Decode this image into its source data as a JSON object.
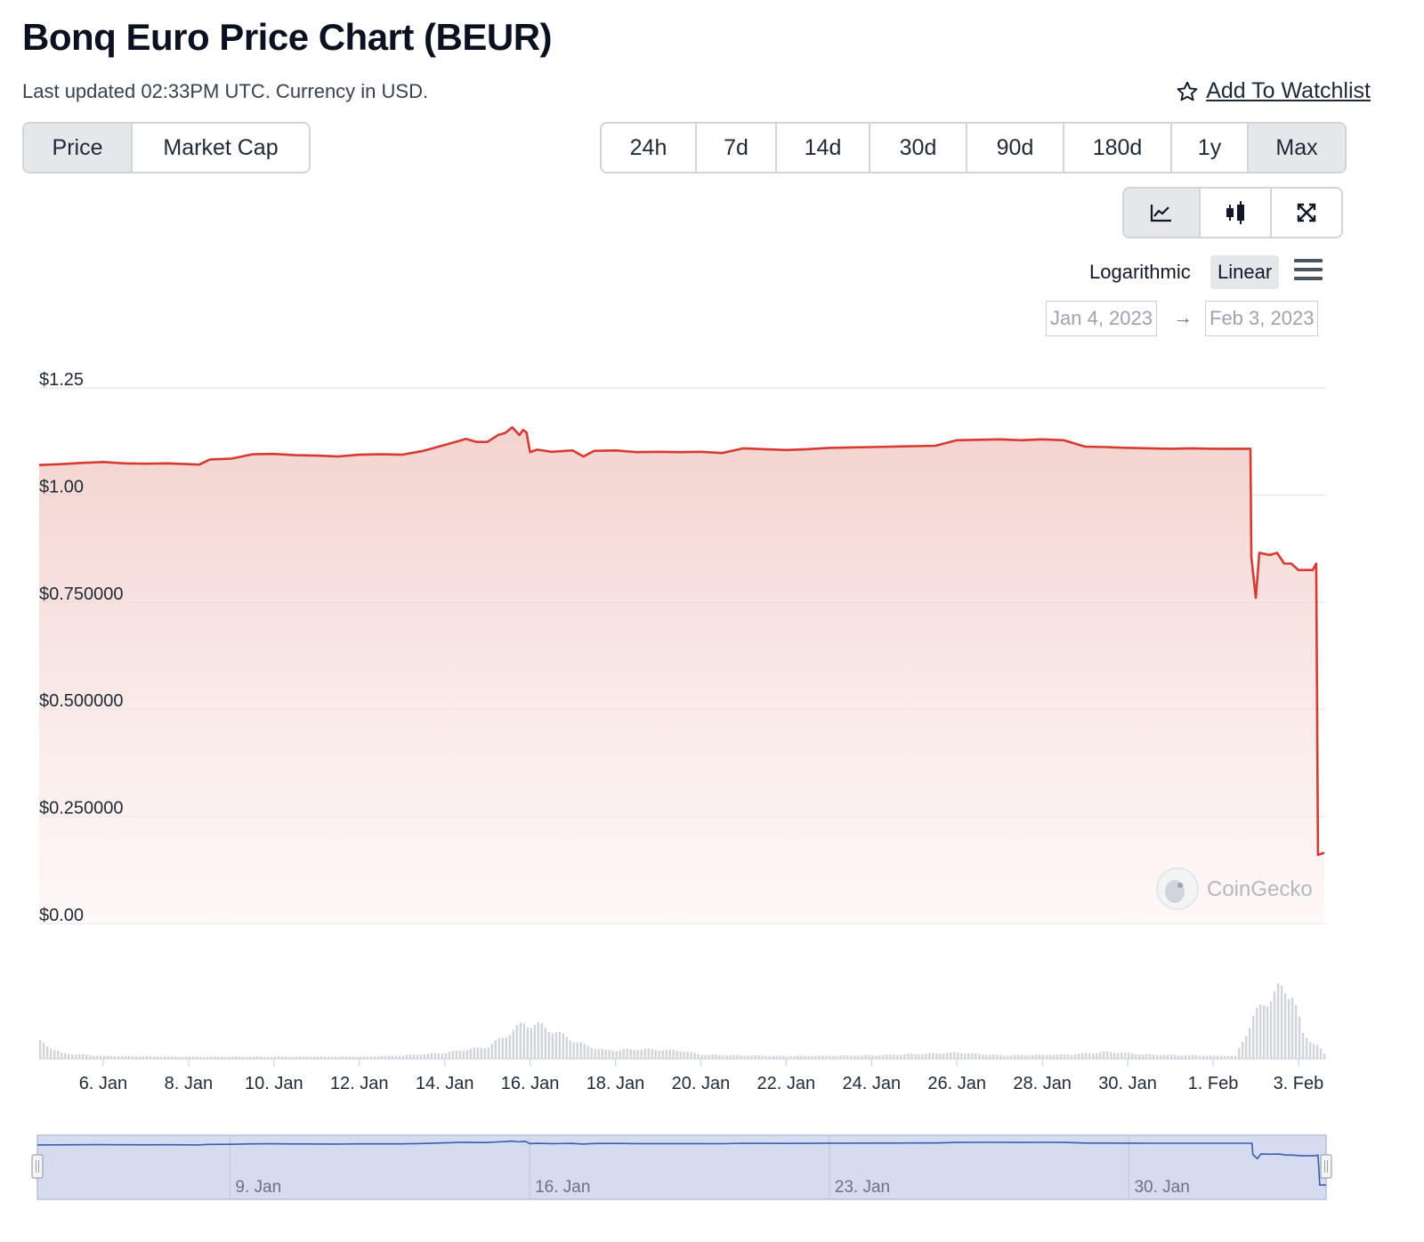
{
  "header": {
    "title": "Bonq Euro Price Chart (BEUR)",
    "subtitle": "Last updated 02:33PM UTC. Currency in USD.",
    "watchlist_label": "Add To Watchlist"
  },
  "tabs": [
    "Price",
    "Market Cap"
  ],
  "active_tab": "Price",
  "ranges": [
    "24h",
    "7d",
    "14d",
    "30d",
    "90d",
    "180d",
    "1y",
    "Max"
  ],
  "active_range": "Max",
  "chart_tools": [
    "line-chart-icon",
    "candlestick-icon",
    "expand-icon"
  ],
  "scale": {
    "log_label": "Logarithmic",
    "linear_label": "Linear",
    "active": "Linear"
  },
  "date_range": {
    "from": "Jan 4, 2023",
    "arrow": "→",
    "to": "Feb 3, 2023"
  },
  "watermark": "CoinGecko",
  "colors": {
    "line": "#d73a30",
    "fill": "#f5d5d1",
    "volume": "#d1d5db",
    "navigator": "#3b5bb5"
  },
  "chart_data": {
    "type": "area",
    "title": "",
    "xlabel": "",
    "ylabel": "",
    "x_range": [
      "2023-01-04T12:00",
      "2023-02-03T14:33"
    ],
    "ylim": [
      0,
      1.25
    ],
    "y_ticks": [
      {
        "value": 0,
        "label": "$0.00"
      },
      {
        "value": 0.25,
        "label": "$0.250000"
      },
      {
        "value": 0.5,
        "label": "$0.500000"
      },
      {
        "value": 0.75,
        "label": "$0.750000"
      },
      {
        "value": 1.0,
        "label": "$1.00"
      },
      {
        "value": 1.25,
        "label": "$1.25"
      }
    ],
    "x_ticks": [
      {
        "date": "2023-01-06",
        "label": "6. Jan"
      },
      {
        "date": "2023-01-08",
        "label": "8. Jan"
      },
      {
        "date": "2023-01-10",
        "label": "10. Jan"
      },
      {
        "date": "2023-01-12",
        "label": "12. Jan"
      },
      {
        "date": "2023-01-14",
        "label": "14. Jan"
      },
      {
        "date": "2023-01-16",
        "label": "16. Jan"
      },
      {
        "date": "2023-01-18",
        "label": "18. Jan"
      },
      {
        "date": "2023-01-20",
        "label": "20. Jan"
      },
      {
        "date": "2023-01-22",
        "label": "22. Jan"
      },
      {
        "date": "2023-01-24",
        "label": "24. Jan"
      },
      {
        "date": "2023-01-26",
        "label": "26. Jan"
      },
      {
        "date": "2023-01-28",
        "label": "28. Jan"
      },
      {
        "date": "2023-01-30",
        "label": "30. Jan"
      },
      {
        "date": "2023-02-01",
        "label": "1. Feb"
      },
      {
        "date": "2023-02-03",
        "label": "3. Feb"
      }
    ],
    "navigator_ticks": [
      {
        "date": "2023-01-09",
        "label": "9. Jan"
      },
      {
        "date": "2023-01-16",
        "label": "16. Jan"
      },
      {
        "date": "2023-01-23",
        "label": "23. Jan"
      },
      {
        "date": "2023-01-30",
        "label": "30. Jan"
      }
    ],
    "series": [
      {
        "points": [
          [
            "2023-01-04T12:00",
            1.07
          ],
          [
            "2023-01-05T00:00",
            1.072
          ],
          [
            "2023-01-05T12:00",
            1.075
          ],
          [
            "2023-01-06T00:00",
            1.077
          ],
          [
            "2023-01-06T12:00",
            1.074
          ],
          [
            "2023-01-07T00:00",
            1.073
          ],
          [
            "2023-01-07T12:00",
            1.074
          ],
          [
            "2023-01-08T00:00",
            1.072
          ],
          [
            "2023-01-08T06:00",
            1.071
          ],
          [
            "2023-01-08T12:00",
            1.083
          ],
          [
            "2023-01-09T00:00",
            1.085
          ],
          [
            "2023-01-09T12:00",
            1.095
          ],
          [
            "2023-01-10T00:00",
            1.096
          ],
          [
            "2023-01-10T12:00",
            1.093
          ],
          [
            "2023-01-11T00:00",
            1.092
          ],
          [
            "2023-01-11T12:00",
            1.09
          ],
          [
            "2023-01-12T00:00",
            1.094
          ],
          [
            "2023-01-12T12:00",
            1.095
          ],
          [
            "2023-01-13T00:00",
            1.094
          ],
          [
            "2023-01-13T12:00",
            1.103
          ],
          [
            "2023-01-14T00:00",
            1.117
          ],
          [
            "2023-01-14T06:00",
            1.124
          ],
          [
            "2023-01-14T12:00",
            1.131
          ],
          [
            "2023-01-14T18:00",
            1.124
          ],
          [
            "2023-01-15T00:00",
            1.124
          ],
          [
            "2023-01-15T06:00",
            1.14
          ],
          [
            "2023-01-15T10:00",
            1.145
          ],
          [
            "2023-01-15T14:00",
            1.158
          ],
          [
            "2023-01-15T18:00",
            1.14
          ],
          [
            "2023-01-15T20:00",
            1.152
          ],
          [
            "2023-01-15T22:00",
            1.146
          ],
          [
            "2023-01-16T00:00",
            1.1
          ],
          [
            "2023-01-16T04:00",
            1.106
          ],
          [
            "2023-01-16T12:00",
            1.101
          ],
          [
            "2023-01-17T00:00",
            1.104
          ],
          [
            "2023-01-17T06:00",
            1.09
          ],
          [
            "2023-01-17T12:00",
            1.103
          ],
          [
            "2023-01-18T00:00",
            1.104
          ],
          [
            "2023-01-18T12:00",
            1.1
          ],
          [
            "2023-01-19T00:00",
            1.101
          ],
          [
            "2023-01-19T12:00",
            1.1
          ],
          [
            "2023-01-20T00:00",
            1.101
          ],
          [
            "2023-01-20T12:00",
            1.098
          ],
          [
            "2023-01-21T00:00",
            1.109
          ],
          [
            "2023-01-21T12:00",
            1.107
          ],
          [
            "2023-01-22T00:00",
            1.105
          ],
          [
            "2023-01-22T12:00",
            1.107
          ],
          [
            "2023-01-23T00:00",
            1.11
          ],
          [
            "2023-01-23T12:00",
            1.111
          ],
          [
            "2023-01-24T00:00",
            1.112
          ],
          [
            "2023-01-24T12:00",
            1.113
          ],
          [
            "2023-01-25T00:00",
            1.114
          ],
          [
            "2023-01-25T12:00",
            1.115
          ],
          [
            "2023-01-26T00:00",
            1.128
          ],
          [
            "2023-01-26T12:00",
            1.129
          ],
          [
            "2023-01-27T00:00",
            1.13
          ],
          [
            "2023-01-27T12:00",
            1.128
          ],
          [
            "2023-01-28T00:00",
            1.13
          ],
          [
            "2023-01-28T12:00",
            1.128
          ],
          [
            "2023-01-29T00:00",
            1.113
          ],
          [
            "2023-01-29T12:00",
            1.112
          ],
          [
            "2023-01-30T00:00",
            1.11
          ],
          [
            "2023-01-30T12:00",
            1.109
          ],
          [
            "2023-01-31T00:00",
            1.108
          ],
          [
            "2023-01-31T12:00",
            1.109
          ],
          [
            "2023-02-01T00:00",
            1.108
          ],
          [
            "2023-02-01T12:00",
            1.108
          ],
          [
            "2023-02-01T21:00",
            1.108
          ],
          [
            "2023-02-01T21:30",
            0.855
          ],
          [
            "2023-02-02T00:00",
            0.76
          ],
          [
            "2023-02-02T02:00",
            0.865
          ],
          [
            "2023-02-02T08:00",
            0.86
          ],
          [
            "2023-02-02T12:00",
            0.865
          ],
          [
            "2023-02-02T16:00",
            0.84
          ],
          [
            "2023-02-02T20:00",
            0.84
          ],
          [
            "2023-02-03T00:00",
            0.825
          ],
          [
            "2023-02-03T08:00",
            0.825
          ],
          [
            "2023-02-03T10:00",
            0.84
          ],
          [
            "2023-02-03T11:00",
            0.16
          ],
          [
            "2023-02-03T14:33",
            0.165
          ]
        ]
      }
    ],
    "volume_relative": [
      [
        "2023-01-04T12:00",
        0.25
      ],
      [
        "2023-01-05T00:00",
        0.08
      ],
      [
        "2023-01-06T00:00",
        0.04
      ],
      [
        "2023-01-08T00:00",
        0.03
      ],
      [
        "2023-01-10T00:00",
        0.03
      ],
      [
        "2023-01-12T00:00",
        0.03
      ],
      [
        "2023-01-13T00:00",
        0.05
      ],
      [
        "2023-01-14T00:00",
        0.09
      ],
      [
        "2023-01-15T00:00",
        0.18
      ],
      [
        "2023-01-15T12:00",
        0.38
      ],
      [
        "2023-01-15T20:00",
        0.52
      ],
      [
        "2023-01-16T06:00",
        0.48
      ],
      [
        "2023-01-16T18:00",
        0.34
      ],
      [
        "2023-01-17T06:00",
        0.2
      ],
      [
        "2023-01-17T18:00",
        0.12
      ],
      [
        "2023-01-18T12:00",
        0.14
      ],
      [
        "2023-01-19T12:00",
        0.12
      ],
      [
        "2023-01-20T00:00",
        0.06
      ],
      [
        "2023-01-22T00:00",
        0.04
      ],
      [
        "2023-01-24T00:00",
        0.05
      ],
      [
        "2023-01-26T00:00",
        0.09
      ],
      [
        "2023-01-27T00:00",
        0.05
      ],
      [
        "2023-01-28T12:00",
        0.06
      ],
      [
        "2023-01-29T12:00",
        0.1
      ],
      [
        "2023-01-30T12:00",
        0.06
      ],
      [
        "2023-01-31T12:00",
        0.05
      ],
      [
        "2023-02-01T12:00",
        0.04
      ],
      [
        "2023-02-01T22:00",
        0.6
      ],
      [
        "2023-02-02T04:00",
        0.82
      ],
      [
        "2023-02-02T12:00",
        1.0
      ],
      [
        "2023-02-02T20:00",
        0.98
      ],
      [
        "2023-02-03T02:00",
        0.35
      ],
      [
        "2023-02-03T10:00",
        0.2
      ],
      [
        "2023-02-03T14:33",
        0.05
      ]
    ],
    "grid": true,
    "legend": "none"
  }
}
